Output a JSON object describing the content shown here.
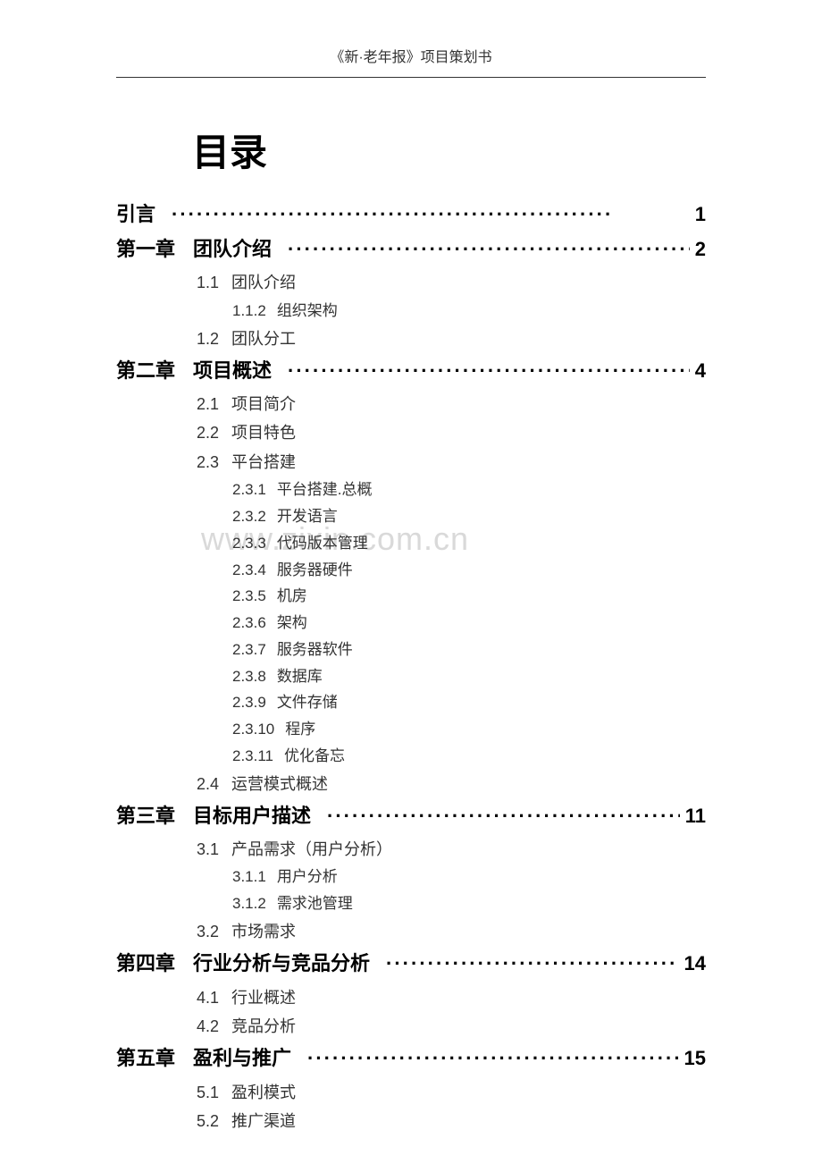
{
  "header": "《新·老年报》项目策划书",
  "toc_title": "目录",
  "watermark": "www.zixin.com.cn",
  "dots_fill": "·····················································",
  "intro": {
    "label": "引言",
    "page": "1"
  },
  "chapters": [
    {
      "label": "第一章",
      "heading": "团队介绍",
      "page": "2",
      "sections": [
        {
          "num": "1.1",
          "title": "团队介绍",
          "sub": [
            {
              "num": "1.1.2",
              "title": "组织架构"
            }
          ]
        },
        {
          "num": "1.2",
          "title": "团队分工",
          "sub": []
        }
      ]
    },
    {
      "label": "第二章",
      "heading": "项目概述",
      "page": "4",
      "sections": [
        {
          "num": "2.1",
          "title": "项目简介",
          "sub": []
        },
        {
          "num": "2.2",
          "title": "项目特色",
          "sub": []
        },
        {
          "num": "2.3",
          "title": "平台搭建",
          "sub": [
            {
              "num": "2.3.1",
              "title": "平台搭建.总概"
            },
            {
              "num": "2.3.2",
              "title": "开发语言"
            },
            {
              "num": "2.3.3",
              "title": "代码版本管理"
            },
            {
              "num": "2.3.4",
              "title": "服务器硬件"
            },
            {
              "num": "2.3.5",
              "title": "机房"
            },
            {
              "num": "2.3.6",
              "title": "架构"
            },
            {
              "num": "2.3.7",
              "title": "服务器软件"
            },
            {
              "num": "2.3.8",
              "title": "数据库"
            },
            {
              "num": "2.3.9",
              "title": "文件存储"
            },
            {
              "num": "2.3.10",
              "title": "程序"
            },
            {
              "num": "2.3.11",
              "title": "优化备忘"
            }
          ]
        },
        {
          "num": "2.4",
          "title": "运营模式概述",
          "sub": []
        }
      ]
    },
    {
      "label": "第三章",
      "heading": "目标用户描述",
      "page": "11",
      "sections": [
        {
          "num": "3.1",
          "title": "产品需求（用户分析）",
          "sub": [
            {
              "num": "3.1.1",
              "title": "用户分析"
            },
            {
              "num": "3.1.2",
              "title": "需求池管理"
            }
          ]
        },
        {
          "num": "3.2",
          "title": "市场需求",
          "sub": []
        }
      ]
    },
    {
      "label": "第四章",
      "heading": "行业分析与竞品分析",
      "page": "14",
      "sections": [
        {
          "num": "4.1",
          "title": "行业概述",
          "sub": []
        },
        {
          "num": "4.2",
          "title": "竞品分析",
          "sub": []
        }
      ]
    },
    {
      "label": "第五章",
      "heading": "盈利与推广",
      "page": "15",
      "sections": [
        {
          "num": "5.1",
          "title": "盈利模式",
          "sub": []
        },
        {
          "num": "5.2",
          "title": "推广渠道",
          "sub": []
        }
      ]
    }
  ],
  "colors": {
    "text": "#000000",
    "subtext": "#333333",
    "background": "#ffffff",
    "watermark": "#d9d9d9"
  },
  "fonts": {
    "title_size": 42,
    "chapter_size": 22,
    "sub1_size": 18,
    "sub2_size": 17,
    "header_size": 16
  }
}
